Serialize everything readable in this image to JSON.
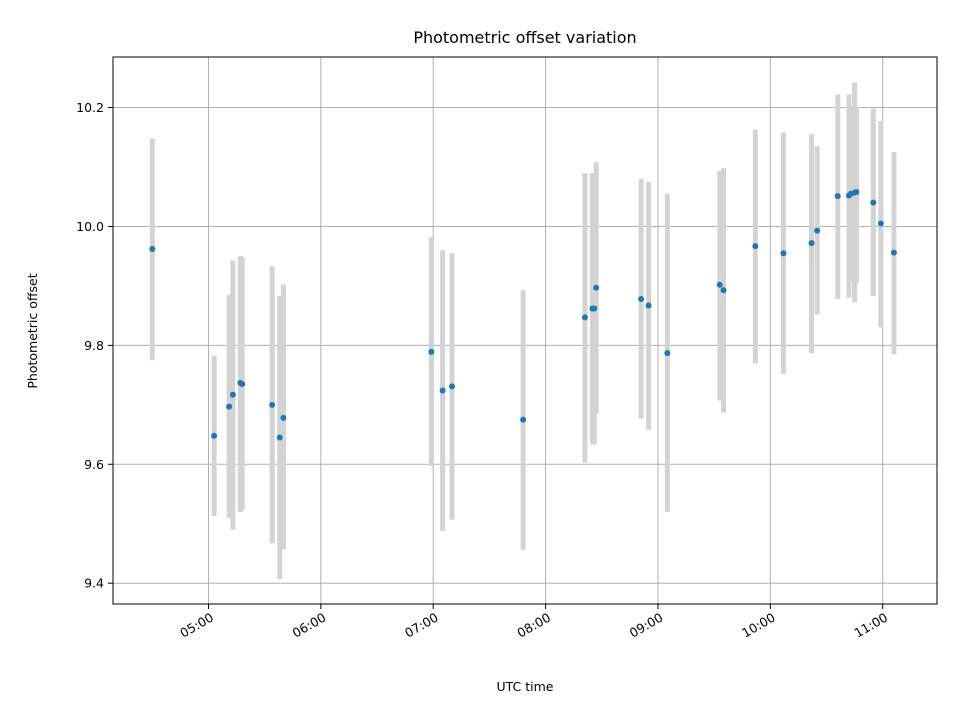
{
  "chart_data": {
    "type": "scatter",
    "title": "Photometric offset variation",
    "xlabel": "UTC time",
    "ylabel": "Photometric offset",
    "xlim": [
      "04:09",
      "11:29"
    ],
    "ylim": [
      9.365,
      10.285
    ],
    "grid": true,
    "colors": {
      "point": "#1f77b4",
      "errorbar": "#d3d3d3",
      "grid": "#b0b0b0"
    },
    "x_ticks": [
      "05:00",
      "06:00",
      "07:00",
      "08:00",
      "09:00",
      "10:00",
      "11:00"
    ],
    "y_ticks": [
      "9.4",
      "9.6",
      "9.8",
      "10.0",
      "10.2"
    ],
    "x_tick_values": [
      "05:00",
      "06:00",
      "07:00",
      "08:00",
      "09:00",
      "10:00",
      "11:00"
    ],
    "y_tick_values": [
      9.4,
      9.6,
      9.8,
      10.0,
      10.2
    ],
    "series": [
      {
        "points": [
          {
            "x": "04:30",
            "y": 9.962,
            "lo": 9.775,
            "hi": 10.148
          },
          {
            "x": "05:03",
            "y": 9.648,
            "lo": 9.513,
            "hi": 9.783
          },
          {
            "x": "05:11",
            "y": 9.697,
            "lo": 9.51,
            "hi": 9.885
          },
          {
            "x": "05:13",
            "y": 9.717,
            "lo": 9.49,
            "hi": 9.943
          },
          {
            "x": "05:17",
            "y": 9.737,
            "lo": 9.52,
            "hi": 9.95
          },
          {
            "x": "05:18",
            "y": 9.735,
            "lo": 9.523,
            "hi": 9.948
          },
          {
            "x": "05:34",
            "y": 9.7,
            "lo": 9.467,
            "hi": 9.933
          },
          {
            "x": "05:38",
            "y": 9.645,
            "lo": 9.407,
            "hi": 9.883
          },
          {
            "x": "05:40",
            "y": 9.678,
            "lo": 9.457,
            "hi": 9.902
          },
          {
            "x": "06:59",
            "y": 9.789,
            "lo": 9.597,
            "hi": 9.982
          },
          {
            "x": "07:05",
            "y": 9.724,
            "lo": 9.488,
            "hi": 9.96
          },
          {
            "x": "07:10",
            "y": 9.731,
            "lo": 9.507,
            "hi": 9.955
          },
          {
            "x": "07:48",
            "y": 9.675,
            "lo": 9.456,
            "hi": 9.893
          },
          {
            "x": "08:21",
            "y": 9.847,
            "lo": 9.603,
            "hi": 10.09
          },
          {
            "x": "08:25",
            "y": 9.862,
            "lo": 9.633,
            "hi": 10.09
          },
          {
            "x": "08:27",
            "y": 9.897,
            "lo": 9.685,
            "hi": 10.108
          },
          {
            "x": "08:26",
            "y": 9.862,
            "lo": 9.633,
            "hi": 10.09
          },
          {
            "x": "08:51",
            "y": 9.878,
            "lo": 9.677,
            "hi": 10.08
          },
          {
            "x": "08:55",
            "y": 9.867,
            "lo": 9.658,
            "hi": 10.075
          },
          {
            "x": "09:05",
            "y": 9.787,
            "lo": 9.52,
            "hi": 10.055
          },
          {
            "x": "09:33",
            "y": 9.902,
            "lo": 9.707,
            "hi": 10.093
          },
          {
            "x": "09:35",
            "y": 9.893,
            "lo": 9.687,
            "hi": 10.098
          },
          {
            "x": "09:52",
            "y": 9.967,
            "lo": 9.77,
            "hi": 10.163
          },
          {
            "x": "10:07",
            "y": 9.955,
            "lo": 9.752,
            "hi": 10.158
          },
          {
            "x": "10:22",
            "y": 9.972,
            "lo": 9.787,
            "hi": 10.155
          },
          {
            "x": "10:25",
            "y": 9.993,
            "lo": 9.852,
            "hi": 10.135
          },
          {
            "x": "10:36",
            "y": 10.051,
            "lo": 9.878,
            "hi": 10.222
          },
          {
            "x": "10:42",
            "y": 10.052,
            "lo": 9.88,
            "hi": 10.222
          },
          {
            "x": "10:43",
            "y": 10.055,
            "lo": 9.908,
            "hi": 10.202
          },
          {
            "x": "10:45",
            "y": 10.057,
            "lo": 9.873,
            "hi": 10.242
          },
          {
            "x": "10:46",
            "y": 10.058,
            "lo": 9.905,
            "hi": 10.202
          },
          {
            "x": "10:55",
            "y": 10.04,
            "lo": 9.883,
            "hi": 10.198
          },
          {
            "x": "10:59",
            "y": 10.005,
            "lo": 9.83,
            "hi": 10.177
          },
          {
            "x": "11:06",
            "y": 9.956,
            "lo": 9.785,
            "hi": 10.125
          }
        ]
      }
    ]
  }
}
